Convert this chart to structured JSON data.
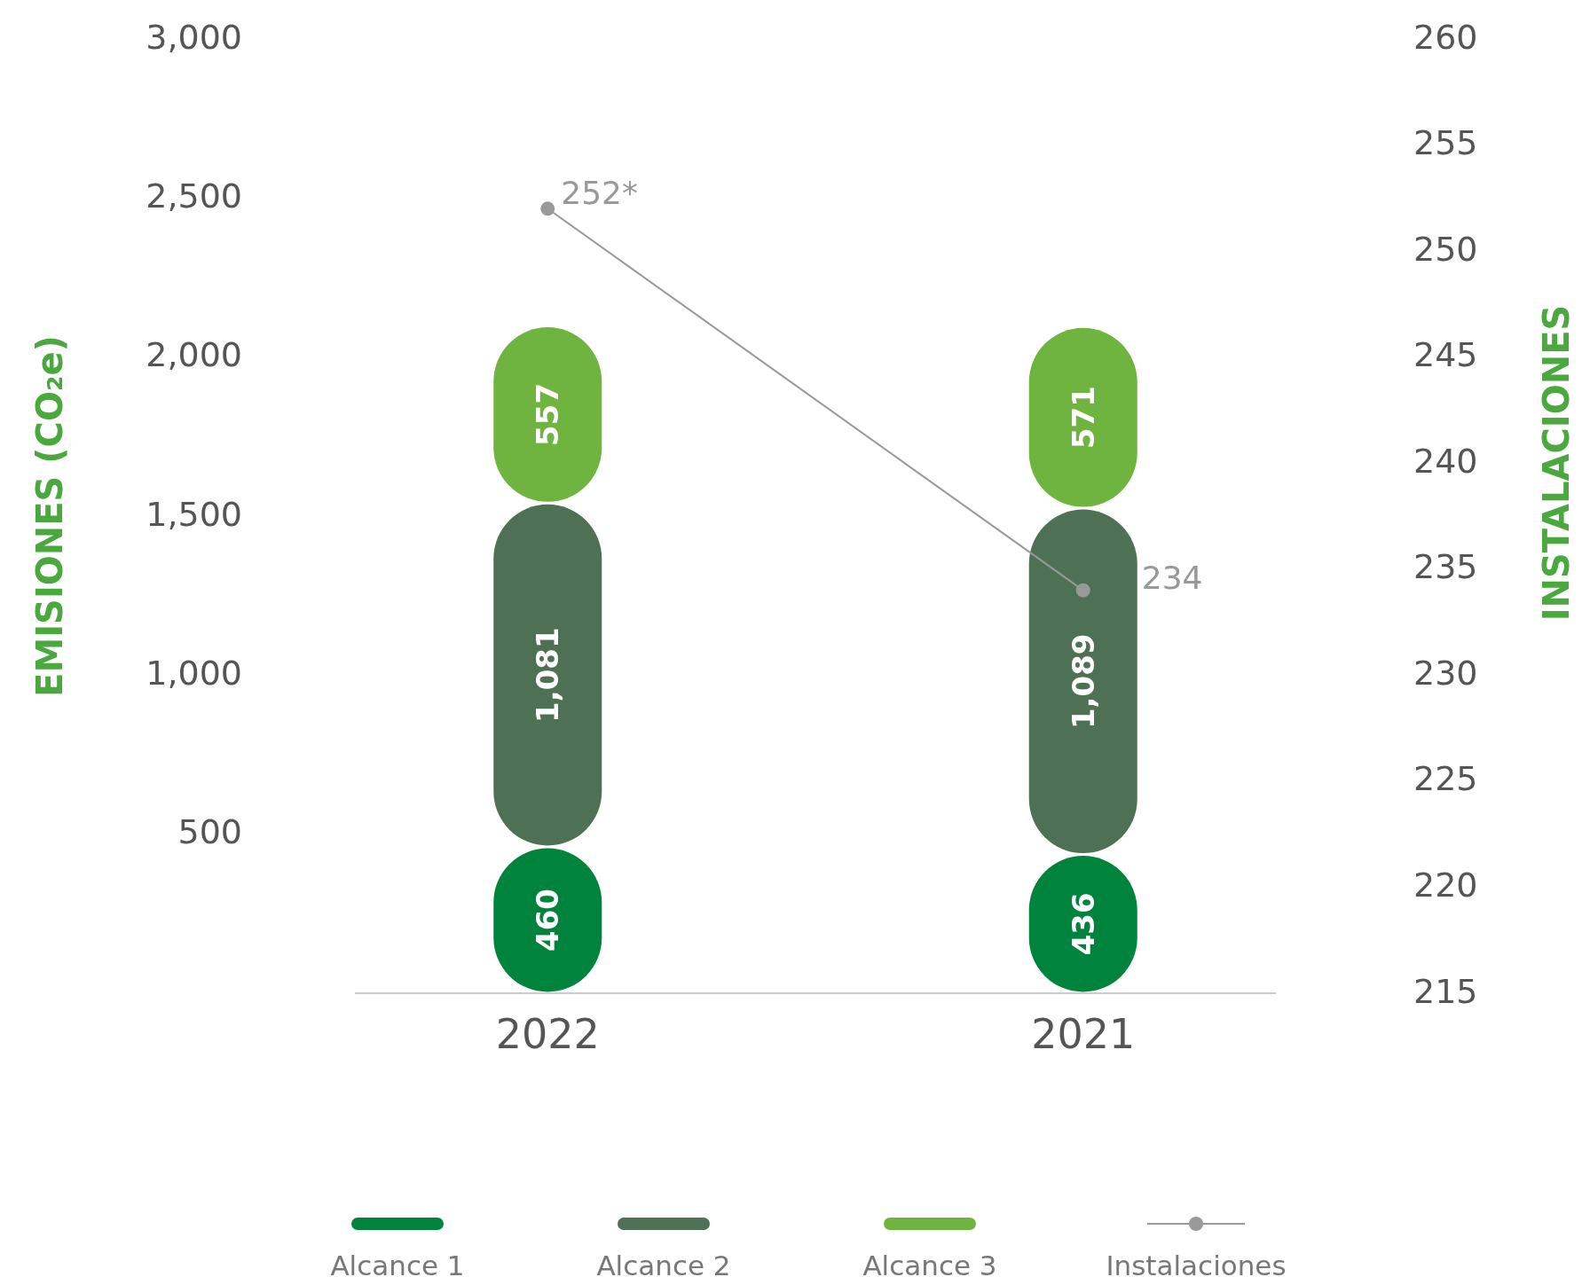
{
  "chart_data": {
    "type": "bar",
    "stacked": true,
    "categories": [
      "2022",
      "2021"
    ],
    "series": [
      {
        "name": "Alcance 1",
        "color": "#00843d",
        "values": [
          460,
          436
        ],
        "value_labels": [
          "460",
          "436"
        ]
      },
      {
        "name": "Alcance 2",
        "color": "#4e7054",
        "values": [
          1081,
          1089
        ],
        "value_labels": [
          "1,081",
          "1,089"
        ]
      },
      {
        "name": "Alcance 3",
        "color": "#6fb43f",
        "values": [
          557,
          571
        ],
        "value_labels": [
          "557",
          "571"
        ]
      },
      {
        "name": "Instalaciones",
        "type": "line",
        "axis": "y2",
        "color": "#999999",
        "marker": "circle",
        "values": [
          252,
          234
        ],
        "value_labels": [
          "252*",
          "234"
        ]
      }
    ],
    "ylim": [
      0,
      3000
    ],
    "yticks": [
      500,
      {
        "value": 1000,
        "label": "1,000"
      },
      {
        "value": 1500,
        "label": "1,500"
      },
      {
        "value": 2000,
        "label": "2,000"
      },
      {
        "value": 2500,
        "label": "2,500"
      },
      {
        "value": 3000,
        "label": "3,000"
      }
    ],
    "y2lim": [
      215,
      260
    ],
    "y2ticks": [
      215,
      220,
      225,
      230,
      235,
      240,
      245,
      250,
      255,
      260
    ],
    "ylabel": "EMISIONES (CO₂e)",
    "y2label": "INSTALACIONES",
    "legend": "bottom"
  }
}
